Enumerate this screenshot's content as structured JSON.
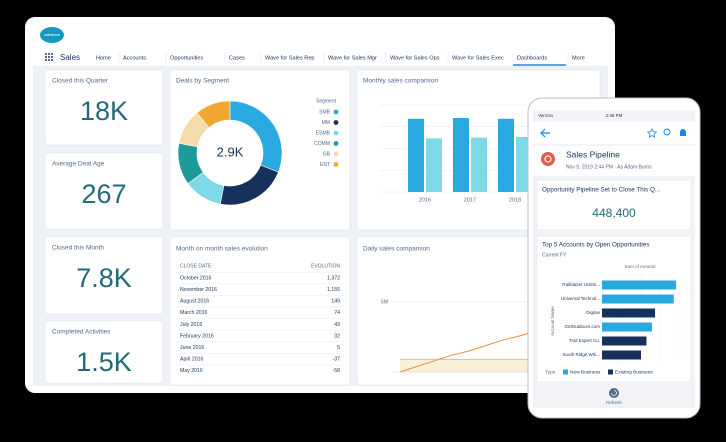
{
  "nav": {
    "logo": "salesforce",
    "app": "Sales",
    "tabs": [
      "Home",
      "Accounts",
      "Opportunities",
      "Cases",
      "Wave for Sales Rep",
      "Wave for Sales Mgr",
      "Wave for Sales Ops",
      "Wave for Sales Exec",
      "Dashboards",
      "More"
    ]
  },
  "kpis": [
    {
      "label": "Closed this Quarter",
      "value": "18K"
    },
    {
      "label": "Average Deal Age",
      "value": "267"
    },
    {
      "label": "Closed this Month",
      "value": "7.8K"
    },
    {
      "label": "Completed Activities",
      "value": "1.5K"
    }
  ],
  "deals_by_segment": {
    "title": "Deals by Segment",
    "center": "2.9K",
    "legend_title": "Segment",
    "segments": [
      {
        "name": "SMB",
        "color": "#2aa8e0",
        "value": 31
      },
      {
        "name": "MM",
        "color": "#16325c",
        "value": 22
      },
      {
        "name": "ESMB",
        "color": "#7fd8e6",
        "value": 12
      },
      {
        "name": "COMM",
        "color": "#1f9a9a",
        "value": 13
      },
      {
        "name": "GB",
        "color": "#f3dca8",
        "value": 11
      },
      {
        "name": "ENT",
        "color": "#f0a830",
        "value": 11
      }
    ]
  },
  "monthly_sales": {
    "title": "Monthly sales comparison",
    "categories": [
      "2016",
      "2017",
      "2018"
    ],
    "ylim": [
      0,
      120
    ],
    "series": [
      {
        "color": "#2aa8e0",
        "values": [
          101,
          102,
          101
        ]
      },
      {
        "color": "#7fd8e6",
        "values": [
          74,
          75,
          76
        ]
      }
    ]
  },
  "month_table": {
    "title": "Month on month sales evolution",
    "header": [
      "CLOSE DATE",
      "EVOLUTION"
    ],
    "rows": [
      [
        "October 2016",
        "1,372"
      ],
      [
        "November 2016",
        "1,155"
      ],
      [
        "August 2016",
        "149"
      ],
      [
        "March 2016",
        "74"
      ],
      [
        "July 2016",
        "43"
      ],
      [
        "February 2016",
        "32"
      ],
      [
        "June 2016",
        "5"
      ],
      [
        "April 2016",
        "-37"
      ],
      [
        "May 2016",
        "-58"
      ]
    ]
  },
  "daily_sales": {
    "title": "Daily sales comparison",
    "ylim": [
      0,
      6
    ],
    "yticks": [
      {
        "value": 5,
        "label": "5M"
      }
    ],
    "series": [
      {
        "color": "#f08a3c",
        "values": [
          0,
          0.4,
          0.8,
          1.2,
          1.5,
          1.9,
          2.3,
          2.6,
          3.0,
          3.3,
          3.6,
          3.9
        ]
      },
      {
        "color": "#d9c38c",
        "values": [
          0.9,
          0.9,
          0.9,
          0.9,
          0.9,
          0.9,
          0.9,
          0.9,
          0.9,
          0.9,
          0.9,
          0.9
        ]
      }
    ]
  },
  "phone": {
    "carrier": "Verizon",
    "time": "2:45 PM",
    "title": "Sales Pipeline",
    "subtitle": "Nov 9, 2019 2:44 PM · As Adam Burns",
    "metric_title": "Opportunity Pipeline Set to Close This Q...",
    "metric_value": "448,400",
    "chart": {
      "title": "Top 5 Accounts by Open Opportunities",
      "subtitle": "Current FY",
      "x_label": "Sum of Amount",
      "y_label": "Account Name",
      "xlim": [
        0,
        1000000
      ],
      "categories": [
        "Trailblazer Unlimi...",
        "Universal Technol...",
        "Digitas",
        "GetOutdoors.com",
        "Trail Expert Co.",
        "South Ridge Whi..."
      ],
      "legend_title": "Type",
      "series": [
        {
          "name": "New Business",
          "color": "#2aa8e0",
          "values": [
            950000,
            920000,
            null,
            640000,
            null,
            null
          ]
        },
        {
          "name": "Existing Business",
          "color": "#16325c",
          "values": [
            null,
            null,
            680000,
            null,
            570000,
            500000
          ]
        }
      ]
    },
    "refresh": "Refresh"
  }
}
